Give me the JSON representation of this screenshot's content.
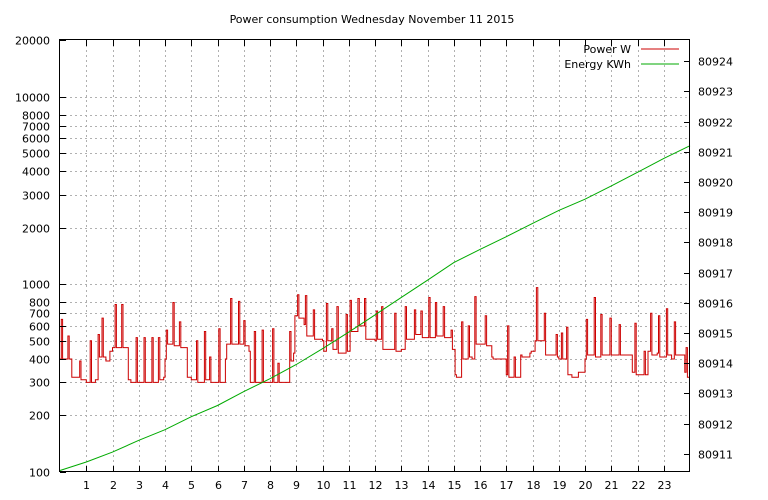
{
  "chart_data": {
    "type": "line",
    "title": "Power consumption Wednesday November 11 2015",
    "xlabel": "",
    "ylabel": "",
    "y2label": "",
    "xlim": [
      0,
      24
    ],
    "ylim": [
      100,
      20000
    ],
    "ylog": true,
    "y2lim": [
      80910.4,
      80924.7
    ],
    "grid": true,
    "legend_position": "top-right",
    "x_ticks": [
      1,
      2,
      3,
      4,
      5,
      6,
      7,
      8,
      9,
      10,
      11,
      12,
      13,
      14,
      15,
      16,
      17,
      18,
      19,
      20,
      21,
      22,
      23
    ],
    "y_ticks": [
      100,
      200,
      300,
      400,
      500,
      600,
      700,
      800,
      1000,
      2000,
      3000,
      4000,
      5000,
      6000,
      7000,
      8000,
      10000,
      20000
    ],
    "y2_ticks": [
      80911,
      80912,
      80913,
      80914,
      80915,
      80916,
      80917,
      80918,
      80919,
      80920,
      80921,
      80922,
      80923,
      80924
    ],
    "series": [
      {
        "name": "Power W",
        "axis": "left",
        "color": "#cc0000",
        "render": "steps",
        "points": [
          [
            0.0,
            400
          ],
          [
            0.05,
            650
          ],
          [
            0.1,
            400
          ],
          [
            0.3,
            530
          ],
          [
            0.35,
            400
          ],
          [
            0.45,
            320
          ],
          [
            0.7,
            320
          ],
          [
            0.75,
            390
          ],
          [
            0.8,
            310
          ],
          [
            1.0,
            300
          ],
          [
            1.15,
            500
          ],
          [
            1.2,
            300
          ],
          [
            1.35,
            310
          ],
          [
            1.45,
            540
          ],
          [
            1.5,
            410
          ],
          [
            1.6,
            660
          ],
          [
            1.65,
            410
          ],
          [
            1.75,
            390
          ],
          [
            1.85,
            390
          ],
          [
            1.9,
            440
          ],
          [
            2.0,
            460
          ],
          [
            2.1,
            780
          ],
          [
            2.15,
            460
          ],
          [
            2.35,
            780
          ],
          [
            2.4,
            460
          ],
          [
            2.55,
            460
          ],
          [
            2.6,
            310
          ],
          [
            2.7,
            300
          ],
          [
            2.9,
            520
          ],
          [
            2.95,
            300
          ],
          [
            3.2,
            520
          ],
          [
            3.25,
            300
          ],
          [
            3.5,
            520
          ],
          [
            3.55,
            300
          ],
          [
            3.75,
            520
          ],
          [
            3.8,
            310
          ],
          [
            3.95,
            320
          ],
          [
            4.0,
            400
          ],
          [
            4.05,
            570
          ],
          [
            4.1,
            480
          ],
          [
            4.3,
            800
          ],
          [
            4.35,
            470
          ],
          [
            4.55,
            630
          ],
          [
            4.6,
            460
          ],
          [
            4.8,
            460
          ],
          [
            4.85,
            320
          ],
          [
            5.0,
            310
          ],
          [
            5.2,
            500
          ],
          [
            5.25,
            300
          ],
          [
            5.5,
            560
          ],
          [
            5.55,
            310
          ],
          [
            5.7,
            410
          ],
          [
            5.75,
            300
          ],
          [
            6.0,
            300
          ],
          [
            6.05,
            580
          ],
          [
            6.1,
            300
          ],
          [
            6.3,
            400
          ],
          [
            6.35,
            480
          ],
          [
            6.5,
            840
          ],
          [
            6.55,
            480
          ],
          [
            6.8,
            810
          ],
          [
            6.85,
            480
          ],
          [
            7.0,
            640
          ],
          [
            7.05,
            470
          ],
          [
            7.2,
            440
          ],
          [
            7.25,
            300
          ],
          [
            7.4,
            560
          ],
          [
            7.45,
            300
          ],
          [
            7.7,
            570
          ],
          [
            7.75,
            300
          ],
          [
            8.0,
            300
          ],
          [
            8.1,
            580
          ],
          [
            8.15,
            300
          ],
          [
            8.3,
            380
          ],
          [
            8.35,
            300
          ],
          [
            8.5,
            300
          ],
          [
            8.75,
            560
          ],
          [
            8.8,
            390
          ],
          [
            8.9,
            430
          ],
          [
            8.95,
            680
          ],
          [
            9.05,
            880
          ],
          [
            9.1,
            660
          ],
          [
            9.3,
            610
          ],
          [
            9.35,
            870
          ],
          [
            9.4,
            530
          ],
          [
            9.65,
            730
          ],
          [
            9.7,
            510
          ],
          [
            10.0,
            500
          ],
          [
            10.05,
            440
          ],
          [
            10.15,
            790
          ],
          [
            10.2,
            500
          ],
          [
            10.35,
            580
          ],
          [
            10.4,
            450
          ],
          [
            10.55,
            760
          ],
          [
            10.6,
            430
          ],
          [
            10.9,
            690
          ],
          [
            10.95,
            440
          ],
          [
            11.05,
            820
          ],
          [
            11.1,
            560
          ],
          [
            11.35,
            840
          ],
          [
            11.4,
            600
          ],
          [
            11.6,
            840
          ],
          [
            11.65,
            510
          ],
          [
            12.0,
            500
          ],
          [
            12.05,
            720
          ],
          [
            12.1,
            510
          ],
          [
            12.25,
            760
          ],
          [
            12.3,
            450
          ],
          [
            12.75,
            700
          ],
          [
            12.8,
            440
          ],
          [
            13.0,
            450
          ],
          [
            13.15,
            760
          ],
          [
            13.2,
            510
          ],
          [
            13.5,
            730
          ],
          [
            13.55,
            540
          ],
          [
            13.75,
            720
          ],
          [
            13.8,
            520
          ],
          [
            14.0,
            520
          ],
          [
            14.05,
            850
          ],
          [
            14.1,
            520
          ],
          [
            14.3,
            800
          ],
          [
            14.35,
            530
          ],
          [
            14.6,
            760
          ],
          [
            14.65,
            520
          ],
          [
            14.9,
            570
          ],
          [
            14.95,
            450
          ],
          [
            15.05,
            330
          ],
          [
            15.1,
            320
          ],
          [
            15.3,
            630
          ],
          [
            15.35,
            400
          ],
          [
            15.55,
            600
          ],
          [
            15.6,
            410
          ],
          [
            15.7,
            400
          ],
          [
            15.8,
            860
          ],
          [
            15.85,
            480
          ],
          [
            16.0,
            480
          ],
          [
            16.2,
            680
          ],
          [
            16.25,
            470
          ],
          [
            16.45,
            410
          ],
          [
            16.5,
            400
          ],
          [
            16.9,
            400
          ],
          [
            17.0,
            330
          ],
          [
            17.05,
            600
          ],
          [
            17.1,
            320
          ],
          [
            17.3,
            410
          ],
          [
            17.35,
            320
          ],
          [
            17.55,
            420
          ],
          [
            17.6,
            410
          ],
          [
            17.9,
            430
          ],
          [
            17.95,
            440
          ],
          [
            18.1,
            500
          ],
          [
            18.15,
            960
          ],
          [
            18.2,
            500
          ],
          [
            18.45,
            700
          ],
          [
            18.5,
            420
          ],
          [
            18.9,
            540
          ],
          [
            18.95,
            410
          ],
          [
            19.0,
            400
          ],
          [
            19.1,
            550
          ],
          [
            19.15,
            400
          ],
          [
            19.3,
            590
          ],
          [
            19.35,
            330
          ],
          [
            19.5,
            320
          ],
          [
            19.75,
            340
          ],
          [
            19.8,
            340
          ],
          [
            20.0,
            400
          ],
          [
            20.05,
            650
          ],
          [
            20.1,
            420
          ],
          [
            20.35,
            850
          ],
          [
            20.4,
            410
          ],
          [
            20.6,
            690
          ],
          [
            20.65,
            420
          ],
          [
            20.95,
            660
          ],
          [
            21.0,
            420
          ],
          [
            21.3,
            610
          ],
          [
            21.35,
            420
          ],
          [
            21.75,
            420
          ],
          [
            21.8,
            340
          ],
          [
            21.9,
            620
          ],
          [
            21.95,
            330
          ],
          [
            22.1,
            330
          ],
          [
            22.25,
            440
          ],
          [
            22.3,
            330
          ],
          [
            22.4,
            440
          ],
          [
            22.5,
            700
          ],
          [
            22.55,
            420
          ],
          [
            22.75,
            430
          ],
          [
            22.8,
            680
          ],
          [
            22.85,
            410
          ],
          [
            23.1,
            740
          ],
          [
            23.15,
            420
          ],
          [
            23.3,
            400
          ],
          [
            23.4,
            630
          ],
          [
            23.45,
            420
          ],
          [
            23.7,
            420
          ],
          [
            23.8,
            340
          ],
          [
            23.85,
            460
          ],
          [
            23.9,
            320
          ],
          [
            24.0,
            320
          ]
        ]
      },
      {
        "name": "Energy KWh",
        "axis": "right",
        "color": "#00aa00",
        "render": "line",
        "points": [
          [
            0,
            80910.45
          ],
          [
            1,
            80910.73
          ],
          [
            2,
            80911.06
          ],
          [
            3,
            80911.45
          ],
          [
            4,
            80911.8
          ],
          [
            5,
            80912.23
          ],
          [
            6,
            80912.6
          ],
          [
            7,
            80913.06
          ],
          [
            8,
            80913.49
          ],
          [
            9,
            80913.96
          ],
          [
            10,
            80914.48
          ],
          [
            11,
            80915.03
          ],
          [
            12,
            80915.6
          ],
          [
            13,
            80916.18
          ],
          [
            14,
            80916.75
          ],
          [
            15,
            80917.33
          ],
          [
            16,
            80917.77
          ],
          [
            17,
            80918.19
          ],
          [
            18,
            80918.63
          ],
          [
            19,
            80919.06
          ],
          [
            20,
            80919.43
          ],
          [
            21,
            80919.87
          ],
          [
            22,
            80920.32
          ],
          [
            23,
            80920.78
          ],
          [
            24,
            80921.2
          ]
        ]
      }
    ]
  }
}
